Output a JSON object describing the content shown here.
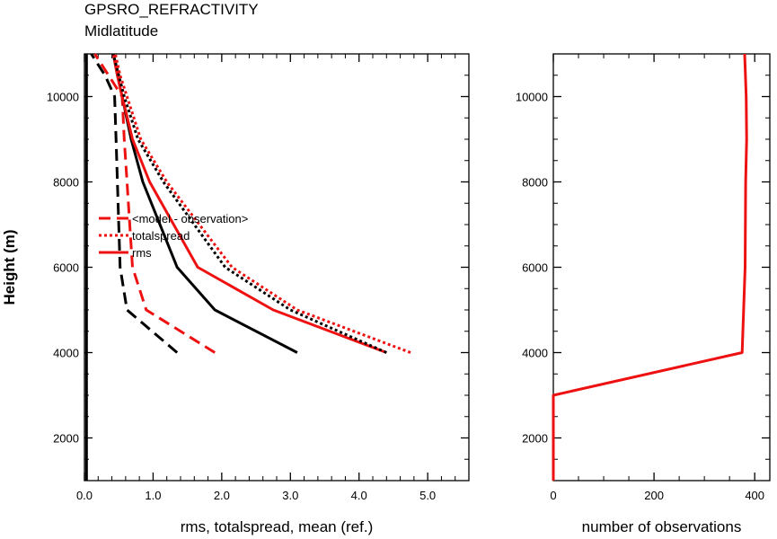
{
  "header": {
    "title": "GPSRO_REFRACTIVITY",
    "subtitle": "Midlatitude"
  },
  "colors": {
    "red": "#ee1111",
    "black": "#000000"
  },
  "chart_data": [
    {
      "type": "line",
      "xlabel": "rms, totalspread, mean (ref.)",
      "ylabel": "Height (m)",
      "xlim": [
        0,
        5.6
      ],
      "ylim": [
        1000,
        11000
      ],
      "xticks": [
        0.0,
        1.0,
        2.0,
        3.0,
        4.0,
        5.0
      ],
      "xtick_labels": [
        "0.0",
        "1.0",
        "2.0",
        "3.0",
        "4.0",
        "5.0"
      ],
      "yticks": [
        2000,
        4000,
        6000,
        8000,
        10000
      ],
      "ytick_labels": [
        "2000",
        "4000",
        "6000",
        "8000",
        "10000"
      ],
      "legend": {
        "position": "middle-left",
        "entries": [
          {
            "label": "<model - observation>",
            "color": "#ee1111",
            "dash": "dashed"
          },
          {
            "label": "totalspread",
            "color": "#ee1111",
            "dash": "dotted"
          },
          {
            "label": "rms",
            "color": "#ee1111",
            "dash": "solid"
          }
        ]
      },
      "series": [
        {
          "color": "#000000",
          "dash": "solid",
          "x": [
            0.03,
            0.03,
            0.03,
            0.03,
            0.03,
            0.03,
            0.03,
            0.03
          ],
          "y": [
            1000,
            4000,
            5000,
            6000,
            8000,
            9000,
            10000,
            11000
          ]
        },
        {
          "color": "#000000",
          "dash": "dashed",
          "x": [
            1.35,
            0.62,
            0.52,
            0.48,
            0.46,
            0.44,
            0.3,
            0.1
          ],
          "y": [
            4000,
            5000,
            6000,
            8000,
            9000,
            10000,
            10500,
            11000
          ]
        },
        {
          "color": "#ee1111",
          "dash": "dashed",
          "x": [
            1.9,
            0.9,
            0.7,
            0.62,
            0.58,
            0.55,
            0.35,
            0.15
          ],
          "y": [
            4000,
            5000,
            6000,
            8000,
            9000,
            10000,
            10500,
            11000
          ]
        },
        {
          "color": "#000000",
          "dash": "solid",
          "x": [
            3.1,
            1.9,
            1.35,
            0.85,
            0.68,
            0.55,
            0.48,
            0.42
          ],
          "y": [
            4000,
            5000,
            6000,
            8000,
            9000,
            10000,
            10500,
            11000
          ]
        },
        {
          "color": "#ee1111",
          "dash": "solid",
          "x": [
            4.4,
            2.75,
            1.65,
            0.95,
            0.7,
            0.55,
            0.48,
            0.42
          ],
          "y": [
            4000,
            5000,
            6000,
            8000,
            9000,
            10000,
            10500,
            11000
          ]
        },
        {
          "color": "#000000",
          "dash": "dotted",
          "x": [
            4.4,
            3.0,
            2.05,
            1.15,
            0.78,
            0.58,
            0.5,
            0.42
          ],
          "y": [
            4000,
            5000,
            6000,
            8000,
            9000,
            10000,
            10500,
            11000
          ]
        },
        {
          "color": "#ee1111",
          "dash": "dotted",
          "x": [
            4.75,
            3.1,
            2.15,
            1.2,
            0.82,
            0.62,
            0.52,
            0.45
          ],
          "y": [
            4000,
            5000,
            6000,
            8000,
            9000,
            10000,
            10500,
            11000
          ]
        }
      ]
    },
    {
      "type": "line",
      "xlabel": "number of observations",
      "xlim": [
        0,
        430
      ],
      "ylim": [
        1000,
        11000
      ],
      "xticks": [
        0,
        200,
        400
      ],
      "xtick_labels": [
        "0",
        "200",
        "400"
      ],
      "yticks": [
        2000,
        4000,
        6000,
        8000,
        10000
      ],
      "ytick_labels": [
        "2000",
        "4000",
        "6000",
        "8000",
        "10000"
      ],
      "series": [
        {
          "color": "#ee1111",
          "dash": "solid",
          "x": [
            0,
            0,
            375,
            381,
            382,
            384,
            383,
            380
          ],
          "y": [
            1000,
            3000,
            4000,
            6000,
            8000,
            9000,
            10000,
            11000
          ]
        }
      ]
    }
  ]
}
